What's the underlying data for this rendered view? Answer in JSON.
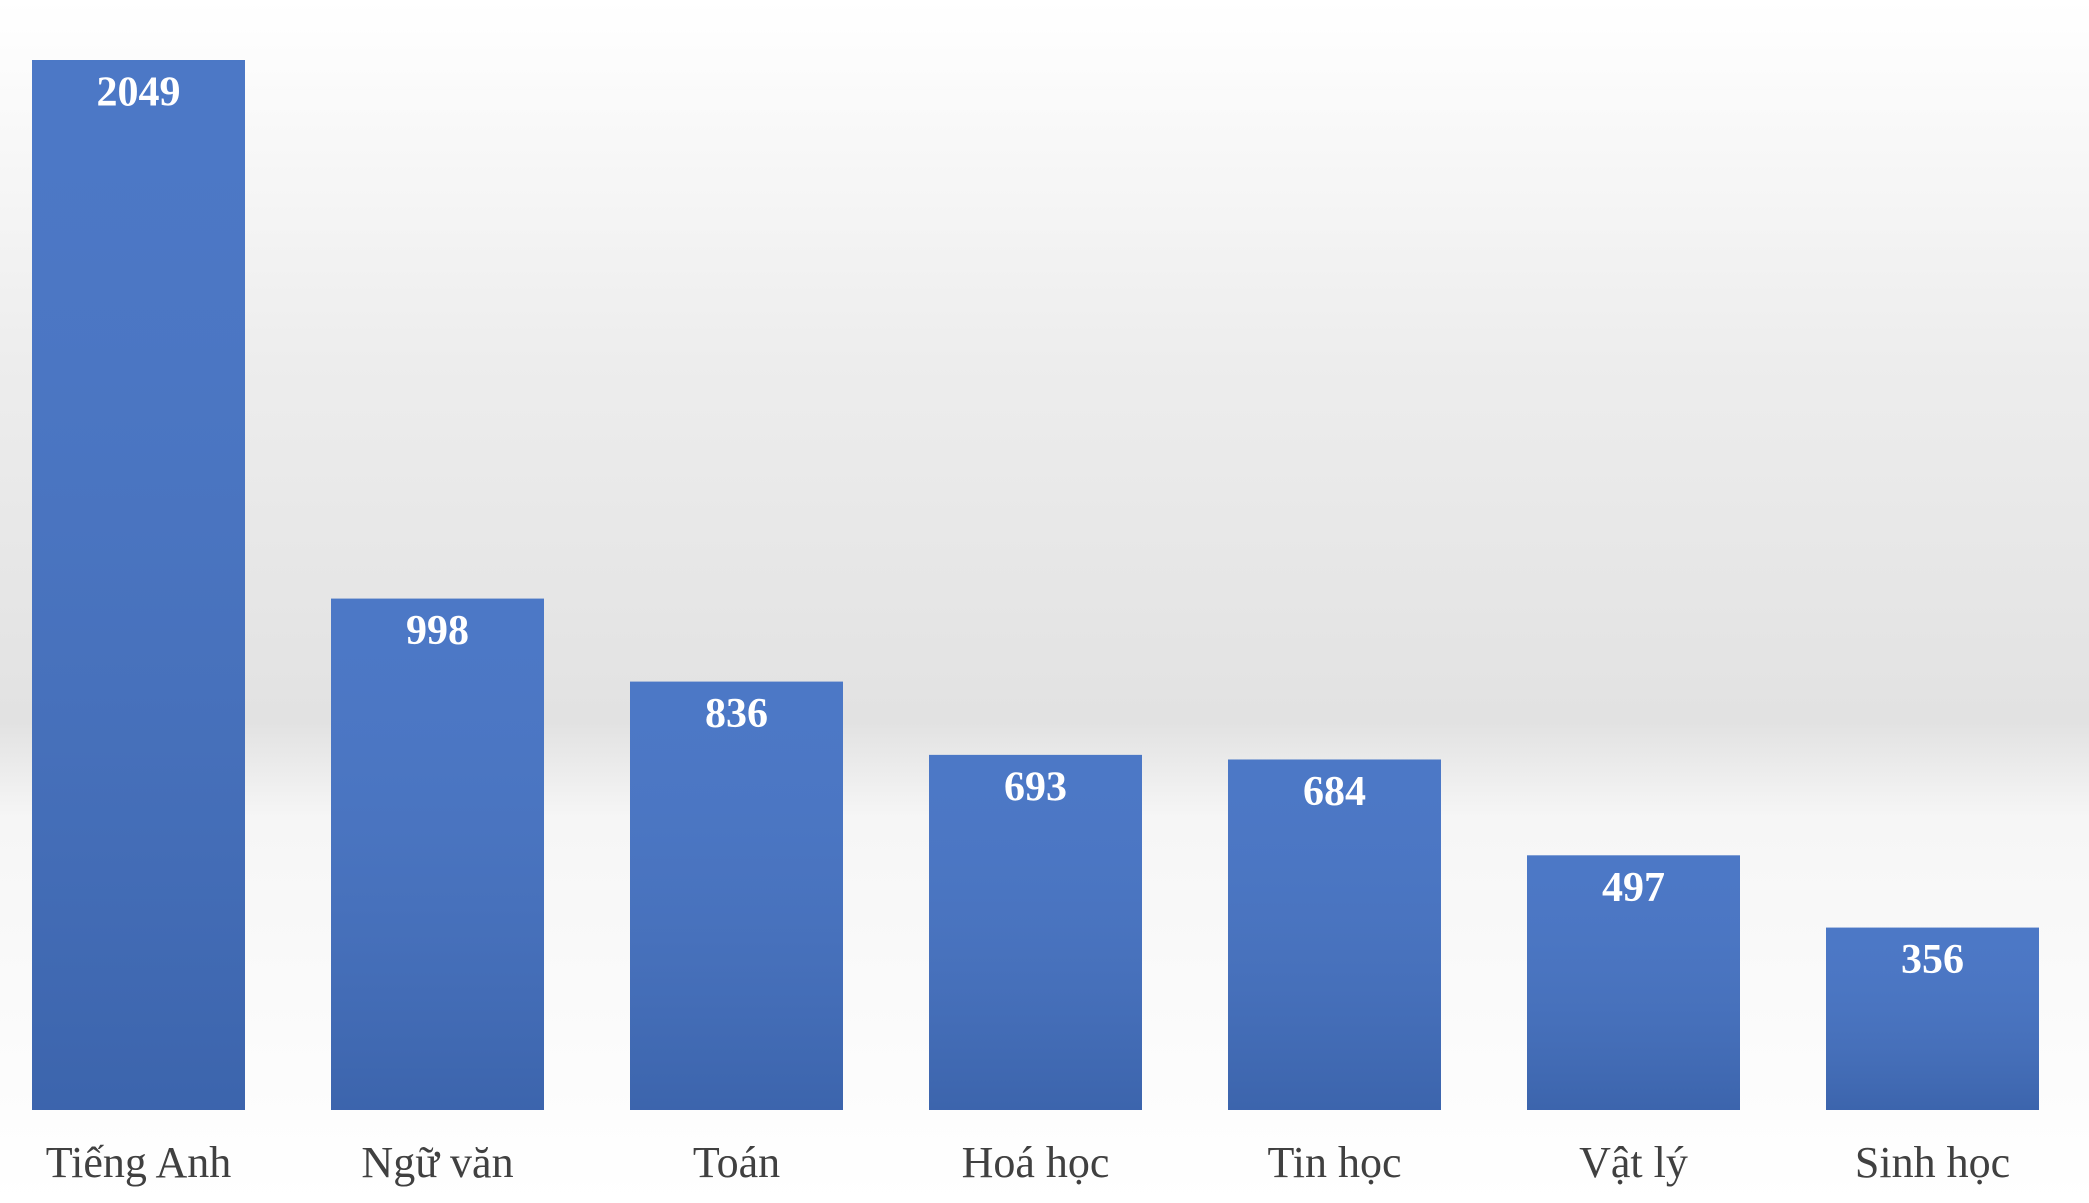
{
  "chart_data": {
    "type": "bar",
    "categories": [
      "Tiếng Anh",
      "Ngữ văn",
      "Toán",
      "Hoá học",
      "Tin học",
      "Vật lý",
      "Sinh học"
    ],
    "values": [
      2049,
      998,
      836,
      693,
      684,
      497,
      356
    ],
    "color": "#4472c4"
  }
}
